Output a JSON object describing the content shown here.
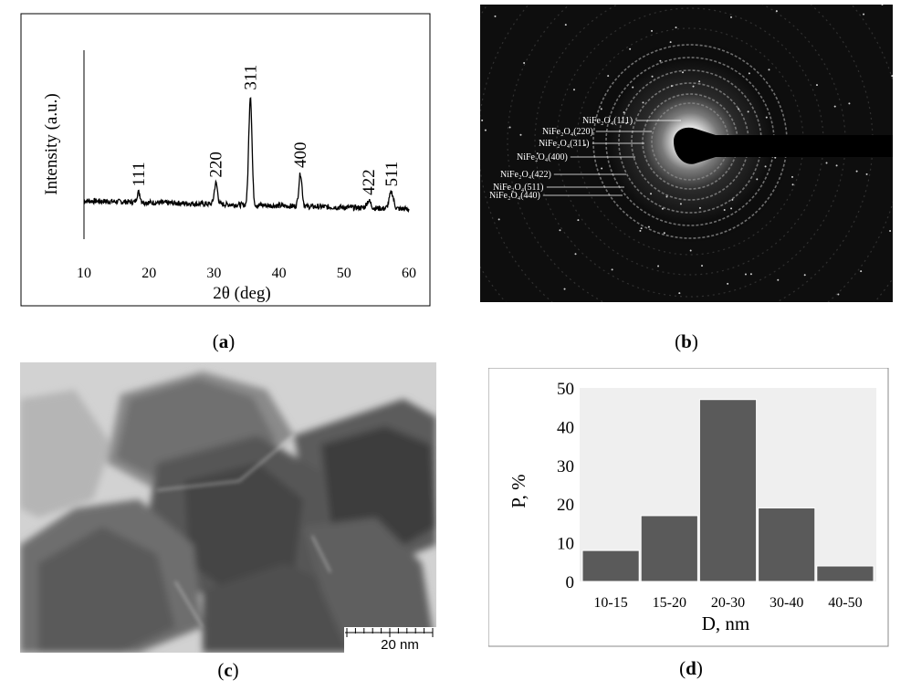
{
  "panels": {
    "a": {
      "label": "a",
      "ylabel": "Intensity (a.u.)",
      "xlabel": "2θ (deg)",
      "x_ticks": [
        "10",
        "20",
        "30",
        "40",
        "50",
        "60"
      ],
      "peaks": [
        {
          "label": "111",
          "two_theta": 18.4,
          "height": 0.055
        },
        {
          "label": "220",
          "two_theta": 30.3,
          "height": 0.115
        },
        {
          "label": "311",
          "two_theta": 35.6,
          "height": 0.6
        },
        {
          "label": "400",
          "two_theta": 43.3,
          "height": 0.18
        },
        {
          "label": "422",
          "two_theta": 53.8,
          "height": 0.04
        },
        {
          "label": "511",
          "two_theta": 57.3,
          "height": 0.09
        }
      ]
    },
    "b": {
      "label": "b",
      "ring_labels": [
        "NiFe₂O₄(111)",
        "NiFe₂O₄(220)",
        "NiFe₂O₄(311)",
        "NiFe₂O₄(400)",
        "NiFe₂O₄(422)",
        "NiFe₂O₄(511)",
        "NiFe₂O₄(440)"
      ]
    },
    "c": {
      "label": "c",
      "scalebar": "20 nm"
    },
    "d": {
      "label": "d",
      "ylabel": "P, %",
      "xlabel": "D, nm",
      "y_ticks": [
        "0",
        "10",
        "20",
        "30",
        "40",
        "50"
      ]
    }
  },
  "chart_data": [
    {
      "type": "line",
      "panel": "a",
      "xlabel": "2θ (deg)",
      "ylabel": "Intensity (a.u.)",
      "xlim": [
        10,
        60
      ],
      "annotations": [
        "111",
        "220",
        "311",
        "400",
        "422",
        "511"
      ],
      "series": [
        {
          "values_peak_positions": [
            18.4,
            30.3,
            35.6,
            43.3,
            53.8,
            57.3
          ]
        }
      ]
    },
    {
      "type": "bar",
      "panel": "d",
      "xlabel": "D, nm",
      "ylabel": "P, %",
      "categories": [
        "10-15",
        "15-20",
        "20-30",
        "30-40",
        "40-50"
      ],
      "values": [
        8,
        17,
        47,
        19,
        4
      ],
      "ylim": [
        0,
        50
      ],
      "colors": {
        "bar": "#5a5a5a"
      }
    }
  ]
}
